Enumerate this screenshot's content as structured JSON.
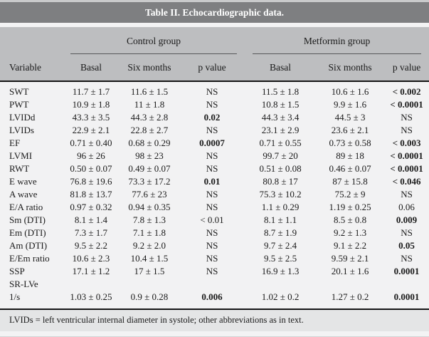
{
  "title": "Table II. Echocardiographic data.",
  "groups": {
    "control": "Control group",
    "metformin": "Metformin group"
  },
  "columns": {
    "variable": "Variable",
    "basal": "Basal",
    "six_months": "Six months",
    "p_value": "p value"
  },
  "table": {
    "rows": [
      {
        "variable": "SWT",
        "c_basal": "11.7 ± 1.7",
        "c_six": "11.6 ± 1.5",
        "c_p": "NS",
        "c_p_bold": false,
        "m_basal": "11.5 ± 1.8",
        "m_six": "10.6 ± 1.6",
        "m_p": "< 0.002",
        "m_p_bold": true
      },
      {
        "variable": "PWT",
        "c_basal": "10.9 ± 1.8",
        "c_six": "11 ± 1.8",
        "c_p": "NS",
        "c_p_bold": false,
        "m_basal": "10.8 ± 1.5",
        "m_six": "9.9 ± 1.6",
        "m_p": "< 0.0001",
        "m_p_bold": true
      },
      {
        "variable": "LVIDd",
        "c_basal": "43.3 ± 3.5",
        "c_six": "44.3 ± 2.8",
        "c_p": "0.02",
        "c_p_bold": true,
        "m_basal": "44.3 ± 3.4",
        "m_six": "44.5 ± 3",
        "m_p": "NS",
        "m_p_bold": false
      },
      {
        "variable": "LVIDs",
        "c_basal": "22.9 ± 2.1",
        "c_six": "22.8 ± 2.7",
        "c_p": "NS",
        "c_p_bold": false,
        "m_basal": "23.1 ± 2.9",
        "m_six": "23.6 ± 2.1",
        "m_p": "NS",
        "m_p_bold": false
      },
      {
        "variable": "EF",
        "c_basal": "0.71 ± 0.40",
        "c_six": "0.68 ± 0.29",
        "c_p": "0.0007",
        "c_p_bold": true,
        "m_basal": "0.71 ± 0.55",
        "m_six": "0.73 ± 0.58",
        "m_p": "< 0.003",
        "m_p_bold": true
      },
      {
        "variable": "LVMI",
        "c_basal": "96 ± 26",
        "c_six": "98 ± 23",
        "c_p": "NS",
        "c_p_bold": false,
        "m_basal": "99.7 ± 20",
        "m_six": "89 ± 18",
        "m_p": "< 0.0001",
        "m_p_bold": true
      },
      {
        "variable": "RWT",
        "c_basal": "0.50 ± 0.07",
        "c_six": "0.49 ± 0.07",
        "c_p": "NS",
        "c_p_bold": false,
        "m_basal": "0.51 ± 0.08",
        "m_six": "0.46 ± 0.07",
        "m_p": "< 0.0001",
        "m_p_bold": true
      },
      {
        "variable": "E wave",
        "c_basal": "76.8 ± 19.6",
        "c_six": "73.3 ± 17.2",
        "c_p": "0.01",
        "c_p_bold": true,
        "m_basal": "80.8 ± 17",
        "m_six": "87 ± 15.8",
        "m_p": "< 0.046",
        "m_p_bold": true
      },
      {
        "variable": "A wave",
        "c_basal": "81.8 ± 13.7",
        "c_six": "77.6 ± 23",
        "c_p": "NS",
        "c_p_bold": false,
        "m_basal": "75.3 ± 10.2",
        "m_six": "75.2 ± 9",
        "m_p": "NS",
        "m_p_bold": false
      },
      {
        "variable": "E/A ratio",
        "c_basal": "0.97 ± 0.32",
        "c_six": "0.94 ± 0.35",
        "c_p": "NS",
        "c_p_bold": false,
        "m_basal": "1.1 ± 0.29",
        "m_six": "1.19 ± 0.25",
        "m_p": "0.06",
        "m_p_bold": false
      },
      {
        "variable": "Sm (DTI)",
        "c_basal": "8.1 ± 1.4",
        "c_six": "7.8 ± 1.3",
        "c_p": "< 0.01",
        "c_p_bold": false,
        "m_basal": "8.1 ± 1.1",
        "m_six": "8.5 ± 0.8",
        "m_p": "0.009",
        "m_p_bold": true
      },
      {
        "variable": "Em (DTI)",
        "c_basal": "7.3 ± 1.7",
        "c_six": "7.1 ± 1.8",
        "c_p": "NS",
        "c_p_bold": false,
        "m_basal": "8.7 ± 1.9",
        "m_six": "9.2 ± 1.3",
        "m_p": "NS",
        "m_p_bold": false
      },
      {
        "variable": "Am (DTI)",
        "c_basal": "9.5 ± 2.2",
        "c_six": "9.2 ± 2.0",
        "c_p": "NS",
        "c_p_bold": false,
        "m_basal": "9.7 ± 2.4",
        "m_six": "9.1 ± 2.2",
        "m_p": "0.05",
        "m_p_bold": true
      },
      {
        "variable": "E/Em ratio",
        "c_basal": "10.6 ± 2.3",
        "c_six": "10.4 ± 1.5",
        "c_p": "NS",
        "c_p_bold": false,
        "m_basal": "9.5 ± 2.5",
        "m_six": "9.59 ± 2.1",
        "m_p": "NS",
        "m_p_bold": false
      },
      {
        "variable": "SSP",
        "c_basal": "17.1 ± 1.2",
        "c_six": "17 ± 1.5",
        "c_p": "NS",
        "c_p_bold": false,
        "m_basal": "16.9 ± 1.3",
        "m_six": "20.1 ± 1.6",
        "m_p": "0.0001",
        "m_p_bold": true
      },
      {
        "variable": "SR-LVe",
        "c_basal": "",
        "c_six": "",
        "c_p": "",
        "c_p_bold": false,
        "m_basal": "",
        "m_six": "",
        "m_p": "",
        "m_p_bold": false
      },
      {
        "variable": "1/s",
        "c_basal": "1.03 ± 0.25",
        "c_six": "0.9 ± 0.28",
        "c_p": "0.006",
        "c_p_bold": true,
        "m_basal": "1.02 ± 0.2",
        "m_six": "1.27 ± 0.2",
        "m_p": "0.0001",
        "m_p_bold": true
      }
    ]
  },
  "footnote": "LVIDs = left ventricular internal diameter in systole; other abbreviations as in text.",
  "colors": {
    "title_bar_bg": "#7e7f81",
    "title_text": "#ffffff",
    "header_bg": "#bdbec0",
    "body_bg": "#f2f2f3",
    "footnote_bg": "#e4e5e6",
    "rule": "#161616"
  }
}
